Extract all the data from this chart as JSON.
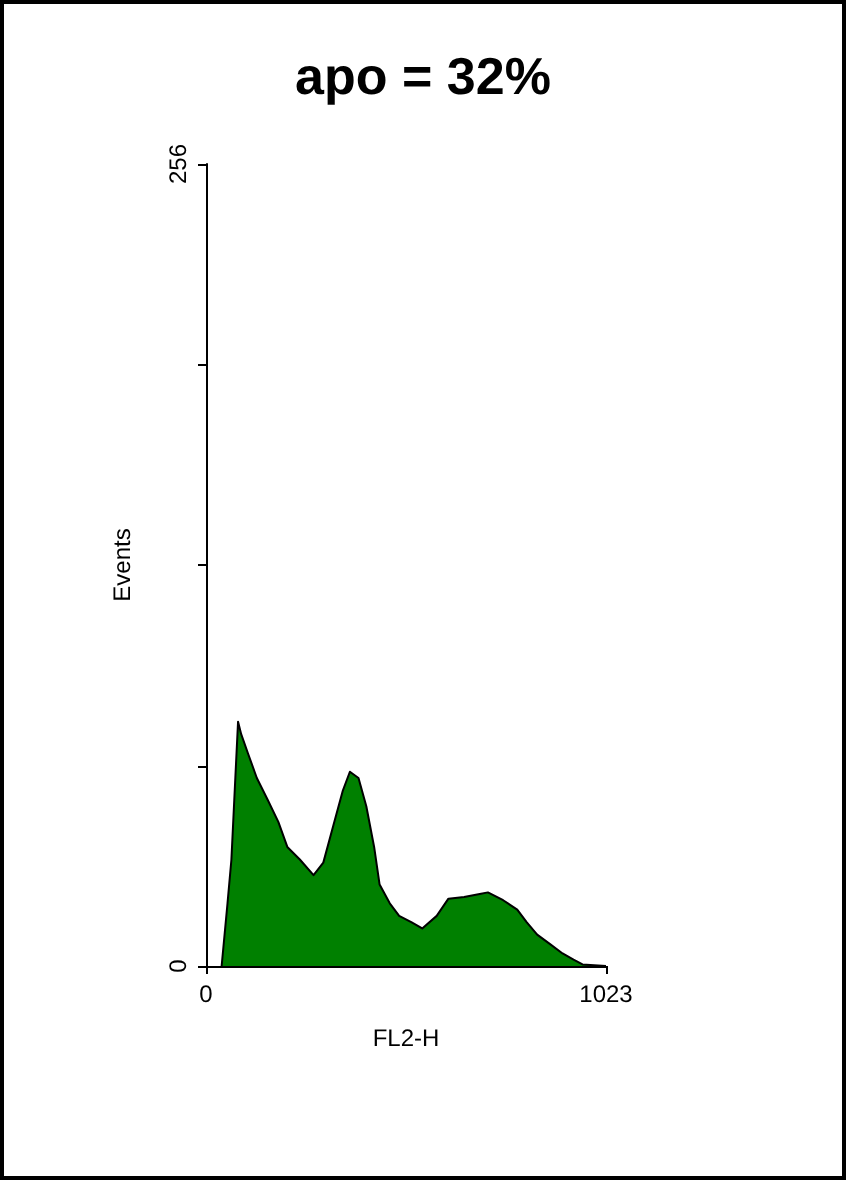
{
  "chart_data": {
    "type": "area",
    "title": "apo = 32%",
    "xlabel": "FL2-H",
    "ylabel": "Events",
    "xlim": [
      0,
      1023
    ],
    "xticks": [
      0,
      1023
    ],
    "ylim": [
      0,
      256
    ],
    "yticks": [
      0,
      {
        "value": 64,
        "label": null
      },
      {
        "value": 128,
        "label": null
      },
      {
        "value": 192,
        "label": null
      },
      256
    ],
    "grid": false,
    "marker": "none",
    "x": [
      40,
      55,
      65,
      75,
      82,
      90,
      107,
      130,
      158,
      185,
      208,
      240,
      275,
      300,
      326,
      350,
      368,
      390,
      410,
      430,
      444,
      470,
      494,
      525,
      553,
      590,
      620,
      660,
      700,
      721,
      760,
      796,
      820,
      847,
      880,
      912,
      940,
      963,
      1023
    ],
    "series": [
      {
        "color": "#008000",
        "values": [
          0,
          20,
          34,
          60,
          78,
          74,
          68,
          60,
          53,
          46,
          38,
          34,
          29,
          33,
          45,
          56,
          62,
          60,
          51,
          38,
          26,
          20,
          16,
          14,
          12,
          16,
          21.5,
          22,
          23,
          23.5,
          21,
          18,
          14,
          10,
          7,
          4,
          2,
          0.5,
          0
        ]
      }
    ]
  }
}
